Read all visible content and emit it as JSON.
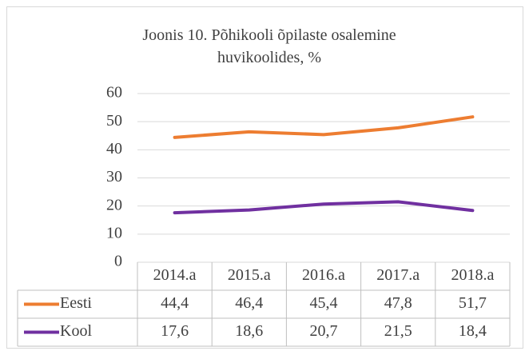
{
  "chart_data": {
    "type": "line",
    "title": "Joonis 10. Põhikooli õpilaste osalemine huvikoolides, %",
    "categories": [
      "2014.a",
      "2015.a",
      "2016.a",
      "2017.a",
      "2018.a"
    ],
    "series": [
      {
        "name": "Eesti",
        "color": "#ed7d31",
        "values": [
          44.4,
          46.4,
          45.4,
          47.8,
          51.7
        ],
        "value_labels": [
          "44,4",
          "46,4",
          "45,4",
          "47,8",
          "51,7"
        ]
      },
      {
        "name": "Kool",
        "color": "#7030a0",
        "values": [
          17.6,
          18.6,
          20.7,
          21.5,
          18.4
        ],
        "value_labels": [
          "17,6",
          "18,6",
          "20,7",
          "21,5",
          "18,4"
        ]
      }
    ],
    "ylim": [
      0,
      60
    ],
    "yticks": [
      0,
      10,
      20,
      30,
      40,
      50,
      60
    ],
    "grid": true
  }
}
